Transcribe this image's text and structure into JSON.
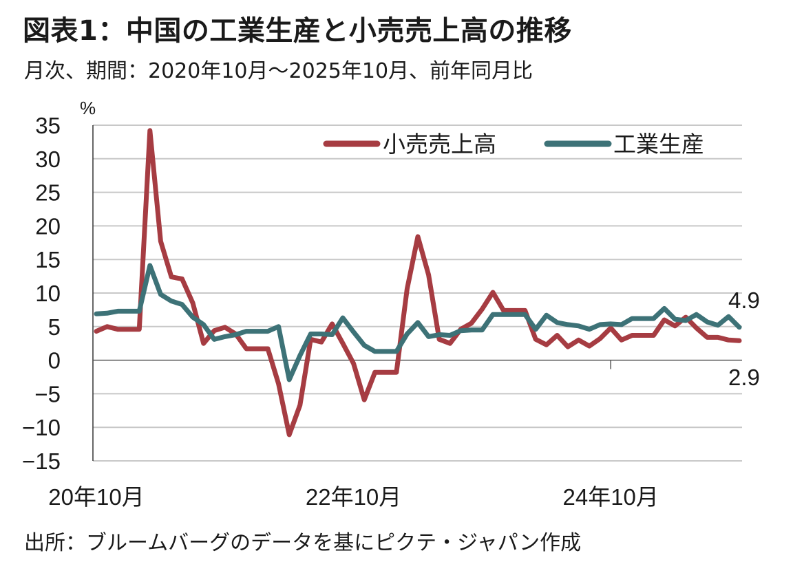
{
  "title": "図表1：中国の工業生産と小売売上高の推移",
  "subtitle": "月次、期間：2020年10月～2025年10月、前年同月比",
  "source": "出所：ブルームバーグのデータを基にピクテ・ジャパン作成",
  "chart_data": {
    "type": "line",
    "ylabel": "%",
    "ylim": [
      -15,
      35
    ],
    "yticks": [
      35,
      30,
      25,
      20,
      15,
      10,
      5,
      0,
      -5,
      -10,
      -15
    ],
    "ytick_labels": [
      "35",
      "30",
      "25",
      "20",
      "15",
      "10",
      "5",
      "0",
      "−5",
      "−10",
      "−15"
    ],
    "x_tick_labels": [
      {
        "label": "20年10月",
        "index": 0
      },
      {
        "label": "22年10月",
        "index": 24
      },
      {
        "label": "24年10月",
        "index": 48
      }
    ],
    "x_count": 61,
    "series": [
      {
        "name": "小売売上高",
        "color": "#a63c42",
        "values": [
          4.3,
          5.0,
          4.6,
          4.6,
          4.6,
          34.2,
          17.7,
          12.4,
          12.1,
          8.5,
          2.5,
          4.4,
          4.9,
          3.9,
          1.7,
          1.7,
          1.7,
          -3.5,
          -11.1,
          -6.7,
          3.1,
          2.7,
          5.4,
          2.5,
          -0.5,
          -5.9,
          -1.8,
          -1.8,
          -1.8,
          10.6,
          18.4,
          12.7,
          3.1,
          2.5,
          4.6,
          5.5,
          7.6,
          10.1,
          7.4,
          7.4,
          7.4,
          3.1,
          2.3,
          3.7,
          2.0,
          3.0,
          2.1,
          3.2,
          4.8,
          3.0,
          3.7,
          3.7,
          3.7,
          6.0,
          5.1,
          6.4,
          4.8,
          3.4,
          3.4,
          3.0,
          2.9
        ]
      },
      {
        "name": "工業生産",
        "color": "#3d7277",
        "values": [
          6.9,
          7.0,
          7.3,
          7.3,
          7.3,
          14.1,
          9.8,
          8.8,
          8.3,
          6.4,
          5.3,
          3.1,
          3.5,
          3.8,
          4.3,
          4.3,
          4.3,
          5.0,
          -2.9,
          0.7,
          3.9,
          3.9,
          3.8,
          6.3,
          4.2,
          2.2,
          1.3,
          1.3,
          1.3,
          3.9,
          5.6,
          3.5,
          3.8,
          3.7,
          4.4,
          4.5,
          4.5,
          6.8,
          6.8,
          6.8,
          6.8,
          4.6,
          6.7,
          5.6,
          5.3,
          5.1,
          4.6,
          5.3,
          5.4,
          5.3,
          6.2,
          6.2,
          6.2,
          7.7,
          6.1,
          5.9,
          6.8,
          5.7,
          5.2,
          6.5,
          4.9
        ]
      }
    ],
    "end_labels": [
      "4.9",
      "2.9"
    ],
    "legend": {
      "placement": "top-right",
      "items": [
        "小売売上高",
        "工業生産"
      ]
    }
  }
}
